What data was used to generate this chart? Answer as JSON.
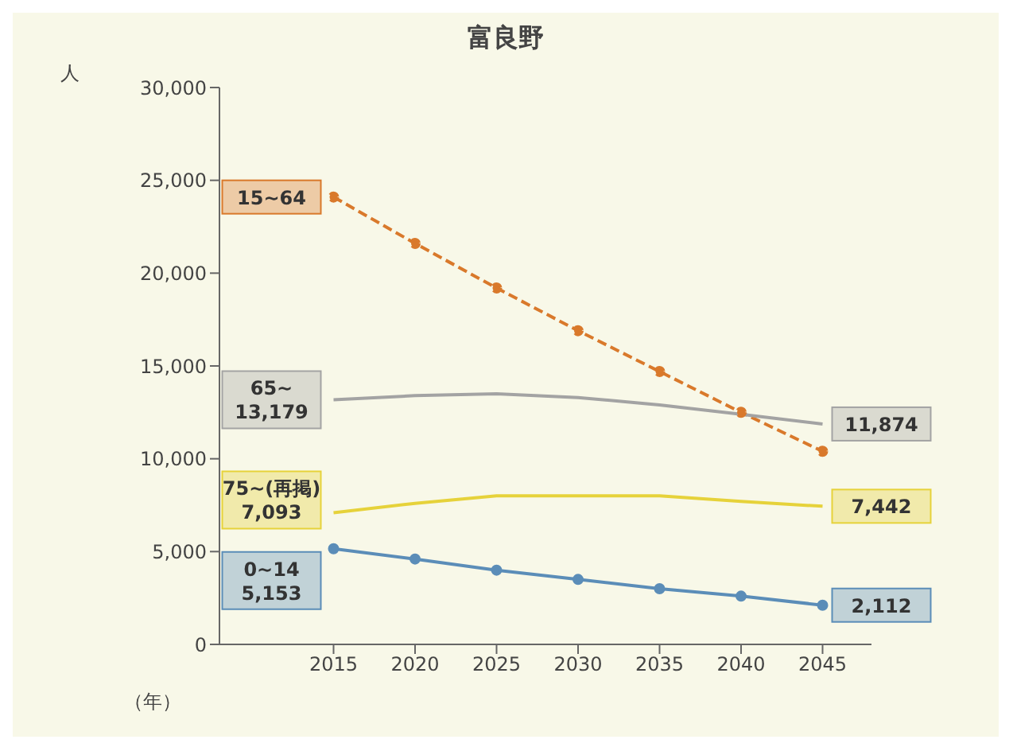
{
  "chart_data": {
    "type": "line",
    "title": "富良野",
    "ylabel": "人",
    "xlabel": "（年）",
    "x": [
      2015,
      2020,
      2025,
      2030,
      2035,
      2040,
      2045
    ],
    "xlim": [
      2008,
      2048
    ],
    "xticks": [
      2015,
      2020,
      2025,
      2030,
      2035,
      2040,
      2045
    ],
    "ylim": [
      0,
      30000
    ],
    "yticks": [
      {
        "value": 0,
        "label": "0"
      },
      {
        "value": 5000,
        "label": "5,000"
      },
      {
        "value": 10000,
        "label": "10,000"
      },
      {
        "value": 15000,
        "label": "15,000"
      },
      {
        "value": 20000,
        "label": "20,000"
      },
      {
        "value": 25000,
        "label": "25,000"
      },
      {
        "value": 30000,
        "label": "30,000"
      }
    ],
    "grid": false,
    "legend": false,
    "series": [
      {
        "name": "15~64",
        "color": "#d9792b",
        "line_style": "dashed",
        "marker": "circle",
        "values": [
          24100,
          21600,
          19200,
          16900,
          14700,
          12500,
          10400
        ],
        "value_labels": [
          null,
          null,
          null,
          null,
          null,
          null,
          null
        ]
      },
      {
        "name": "65~",
        "color": "#a3a3a3",
        "line_style": "solid",
        "marker": "none",
        "values": [
          13179,
          13400,
          13500,
          13300,
          12900,
          12400,
          11874
        ],
        "value_labels": [
          "13,179",
          null,
          null,
          null,
          null,
          null,
          "11,874"
        ]
      },
      {
        "name": "75~(再掲)",
        "color": "#e6d23a",
        "line_style": "solid",
        "marker": "none",
        "values": [
          7093,
          7600,
          8000,
          8000,
          8000,
          7700,
          7442
        ],
        "value_labels": [
          "7,093",
          null,
          null,
          null,
          null,
          null,
          "7,442"
        ]
      },
      {
        "name": "0~14",
        "color": "#5b8db8",
        "line_style": "solid",
        "marker": "circle",
        "values": [
          5153,
          4600,
          4000,
          3500,
          3000,
          2600,
          2112
        ],
        "value_labels": [
          "5,153",
          null,
          null,
          null,
          null,
          null,
          "2,112"
        ]
      }
    ]
  }
}
